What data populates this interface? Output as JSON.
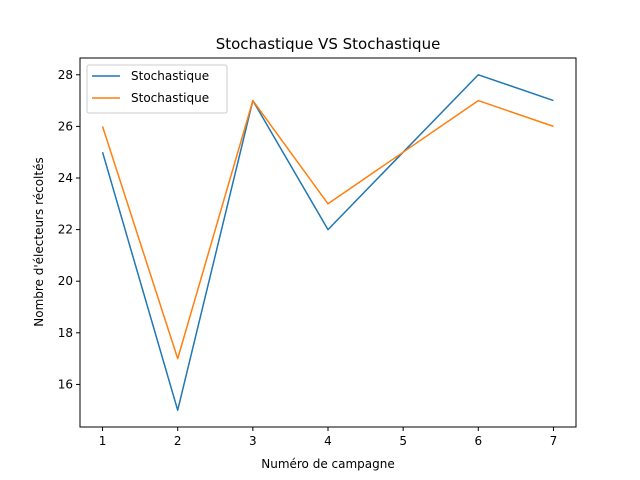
{
  "chart_data": {
    "type": "line",
    "title": "Stochastique VS Stochastique",
    "xlabel": "Numéro de campagne",
    "ylabel": "Nombre d'électeurs récoltés",
    "x": [
      1,
      2,
      3,
      4,
      5,
      6,
      7
    ],
    "xticks": [
      "1",
      "2",
      "3",
      "4",
      "5",
      "6",
      "7"
    ],
    "yticks": [
      "16",
      "18",
      "20",
      "22",
      "24",
      "26",
      "28"
    ],
    "ylim": [
      14.35,
      28.65
    ],
    "xlim": [
      0.7,
      7.3
    ],
    "grid": false,
    "legend_position": "top-left",
    "series": [
      {
        "name": "Stochastique",
        "color": "#1f77b4",
        "values": [
          25,
          15,
          27,
          22,
          25,
          28,
          27
        ]
      },
      {
        "name": "Stochastique",
        "color": "#ff7f0e",
        "values": [
          26,
          17,
          27,
          23,
          25,
          27,
          26
        ]
      }
    ]
  }
}
